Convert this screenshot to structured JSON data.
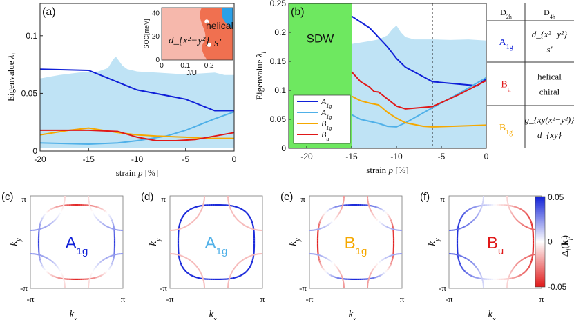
{
  "colors": {
    "blue": "#1020d8",
    "lightblue": "#4fb0e8",
    "orange": "#f5a800",
    "red": "#e01818",
    "band": "#bfe3f5",
    "sdw": "#6ee860"
  },
  "chart_data": [
    {
      "id": "a",
      "type": "line",
      "panel_label": "(a)",
      "xlabel": "strain p [%]",
      "ylabel": "Eigenvalue λi",
      "xlim": [
        -20,
        0
      ],
      "ylim": [
        0,
        0.128
      ],
      "xticks": [
        "-20",
        "-15",
        "-10",
        "-5",
        "0"
      ],
      "yticks": [
        "0",
        "0.05",
        "0.1"
      ],
      "band": {
        "x": [
          -20,
          -18,
          -16,
          -14,
          -13,
          -12.5,
          -12.2,
          -11.5,
          -11,
          -10,
          -8,
          -6,
          -4,
          -2,
          -1,
          0
        ],
        "upper": [
          0.063,
          0.066,
          0.068,
          0.069,
          0.072,
          0.079,
          0.082,
          0.074,
          0.071,
          0.069,
          0.068,
          0.067,
          0.067,
          0.068,
          0.066,
          0.066
        ],
        "lower": [
          0.003,
          0.003,
          0.003,
          0.003,
          0.003,
          0.003,
          0.003,
          0.003,
          0.003,
          0.003,
          0.003,
          0.003,
          0.003,
          0.003,
          0.003,
          0.003
        ]
      },
      "series": [
        {
          "name": "A1g",
          "color_key": "blue",
          "x": [
            -20,
            -15,
            -10,
            -5,
            -2,
            0
          ],
          "values": [
            0.071,
            0.07,
            0.053,
            0.045,
            0.035,
            0.035
          ]
        },
        {
          "name": "A1g",
          "color_key": "lightblue",
          "x": [
            -20,
            -15,
            -12,
            -10,
            -7,
            -5,
            -2,
            0
          ],
          "values": [
            0.007,
            0.006,
            0.007,
            0.009,
            0.013,
            0.018,
            0.028,
            0.034
          ]
        },
        {
          "name": "B1g",
          "color_key": "orange",
          "x": [
            -20,
            -17,
            -15,
            -12,
            -10,
            -8,
            -5,
            -3,
            0
          ],
          "values": [
            0.014,
            0.018,
            0.02,
            0.016,
            0.014,
            0.013,
            0.012,
            0.011,
            0.011
          ]
        },
        {
          "name": "Bu",
          "color_key": "red",
          "x": [
            -20,
            -15,
            -12,
            -10,
            -8,
            -6,
            -4,
            -2,
            0
          ],
          "values": [
            0.018,
            0.018,
            0.017,
            0.012,
            0.009,
            0.009,
            0.01,
            0.013,
            0.016
          ]
        }
      ],
      "inset": {
        "xlabel": "J/U",
        "ylabel": "SOC[meV]",
        "xticks": [
          "0",
          "0.1",
          "0.2"
        ],
        "yticks": [
          "0",
          "20",
          "40"
        ],
        "xlim": [
          0,
          0.3
        ],
        "ylim": [
          0,
          45
        ],
        "regions": [
          "d_{x²−y²}",
          "s′",
          "helical"
        ],
        "points": [
          {
            "x": 0.19,
            "y": 33
          },
          {
            "x": 0.2,
            "y": 13
          }
        ]
      }
    },
    {
      "id": "b",
      "type": "line",
      "panel_label": "(b)",
      "xlabel": "strain p [%]",
      "ylabel": "Eigenvalue λi",
      "xlim": [
        -22,
        0
      ],
      "ylim": [
        0,
        0.25
      ],
      "xticks": [
        "-20",
        "-15",
        "-10",
        "-5",
        "0"
      ],
      "yticks": [
        "0",
        "0.05",
        "0.1",
        "0.15",
        "0.2",
        "0.25"
      ],
      "sdw_region": {
        "from": -22,
        "to": -15,
        "label": "SDW"
      },
      "dashed_x": -6,
      "band": {
        "x": [
          -15,
          -13,
          -12,
          -11,
          -10.5,
          -10,
          -9.5,
          -9,
          -8,
          -6,
          -4,
          -2,
          0
        ],
        "upper": [
          0.18,
          0.185,
          0.188,
          0.195,
          0.205,
          0.212,
          0.2,
          0.192,
          0.188,
          0.188,
          0.187,
          0.188,
          0.186
        ],
        "lower": [
          0,
          0,
          0,
          0,
          0,
          0,
          0,
          0,
          0,
          0,
          0,
          0,
          0
        ]
      },
      "series": [
        {
          "name": "A1g",
          "color_key": "blue",
          "x": [
            -15,
            -13,
            -11,
            -10,
            -9,
            -6,
            -1,
            0
          ],
          "values": [
            0.228,
            0.208,
            0.175,
            0.155,
            0.14,
            0.115,
            0.108,
            0.12
          ]
        },
        {
          "name": "A1g",
          "color_key": "lightblue",
          "x": [
            -15,
            -14,
            -12,
            -11,
            -10,
            -9,
            -6,
            -3,
            0
          ],
          "values": [
            0.058,
            0.05,
            0.043,
            0.038,
            0.037,
            0.044,
            0.07,
            0.095,
            0.122
          ]
        },
        {
          "name": "B1g",
          "color_key": "orange",
          "x": [
            -15,
            -14,
            -13,
            -12,
            -11,
            -10,
            -9,
            -7,
            -6,
            -4,
            -2,
            0
          ],
          "values": [
            0.09,
            0.082,
            0.078,
            0.075,
            0.062,
            0.052,
            0.044,
            0.038,
            0.037,
            0.038,
            0.039,
            0.04
          ]
        },
        {
          "name": "Bu",
          "color_key": "red",
          "x": [
            -15,
            -14,
            -13,
            -12.5,
            -12,
            -11,
            -10,
            -9,
            -6,
            -3,
            0
          ],
          "values": [
            0.132,
            0.115,
            0.106,
            0.098,
            0.097,
            0.085,
            0.073,
            0.068,
            0.072,
            0.093,
            0.117
          ]
        }
      ],
      "legend": {
        "position": "bottom-left",
        "entries": [
          "A1g",
          "A1g",
          "B1g",
          "Bu"
        ]
      }
    }
  ],
  "table": {
    "headers": [
      "D2h",
      "D4h"
    ],
    "rows": [
      {
        "rep": "A1g",
        "color_key": "blue",
        "items": [
          "d_{x²−y²}",
          "s′"
        ]
      },
      {
        "rep": "Bu",
        "color_key": "red",
        "items": [
          "helical",
          "chiral"
        ]
      },
      {
        "rep": "B1g",
        "color_key": "orange",
        "items": [
          "g_{xy(x²−y²)}",
          "d_{xy}"
        ]
      }
    ]
  },
  "fermi_panels": [
    {
      "label": "(c)",
      "rep": "A1g",
      "color_key": "blue",
      "pattern": "A1g_a"
    },
    {
      "label": "(d)",
      "rep": "A1g",
      "color_key": "lightblue",
      "pattern": "A1g_b"
    },
    {
      "label": "(e)",
      "rep": "B1g",
      "color_key": "orange",
      "pattern": "B1g"
    },
    {
      "label": "(f)",
      "rep": "Bu",
      "color_key": "red",
      "pattern": "Bu"
    }
  ],
  "fermi_axes": {
    "xlabel": "kx",
    "ylabel": "ky",
    "ticks": [
      "-π",
      "π"
    ]
  },
  "colorbar": {
    "label": "Δl(kf)",
    "max": "0.05",
    "mid": "0",
    "min": "-0.05"
  }
}
